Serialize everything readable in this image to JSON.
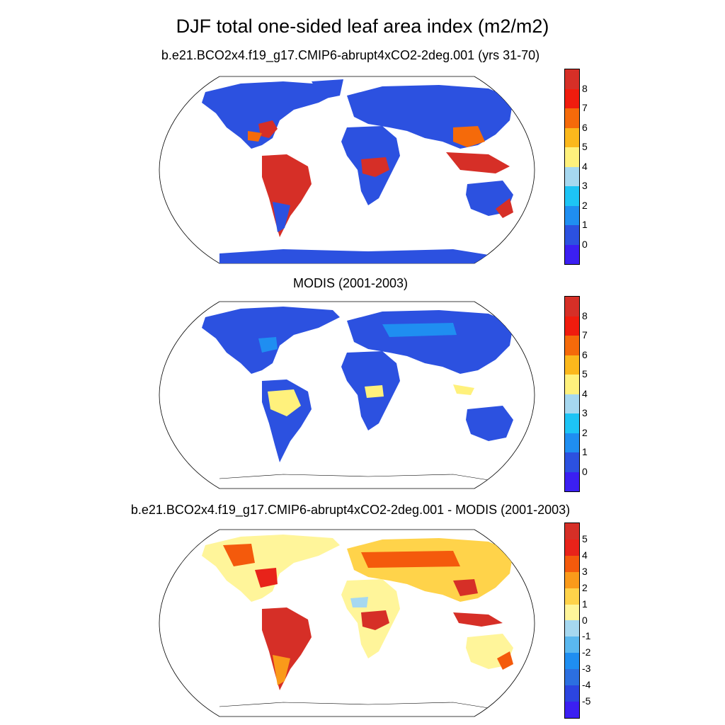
{
  "title": "DJF total one-sided leaf area index (m2/m2)",
  "panels": [
    {
      "id": "model",
      "title": "b.e21.BCO2x4.f19_g17.CMIP6-abrupt4xCO2-2deg.001 (yrs 31-70)",
      "colorbar_labels": [
        "8",
        "7",
        "6",
        "5",
        "4",
        "3",
        "2",
        "1",
        "0"
      ],
      "colors": [
        "#d62f27",
        "#f01c0e",
        "#f56a0a",
        "#fbb81c",
        "#fff17c",
        "#a6d8f0",
        "#1dc4f5",
        "#1f8ef1",
        "#2c51e0",
        "#3b1ff2"
      ]
    },
    {
      "id": "obs",
      "title": "MODIS (2001-2003)",
      "colorbar_labels": [
        "8",
        "7",
        "6",
        "5",
        "4",
        "3",
        "2",
        "1",
        "0"
      ],
      "colors": [
        "#d62f27",
        "#f01c0e",
        "#f56a0a",
        "#fbb81c",
        "#fff17c",
        "#a6d8f0",
        "#1dc4f5",
        "#1f8ef1",
        "#2c51e0",
        "#3b1ff2"
      ]
    },
    {
      "id": "diff",
      "title": "b.e21.BCO2x4.f19_g17.CMIP6-abrupt4xCO2-2deg.001 - MODIS (2001-2003)",
      "colorbar_labels": [
        "5",
        "4",
        "3",
        "2",
        "1",
        "0",
        "-1",
        "-2",
        "-3",
        "-4",
        "-5"
      ],
      "colors": [
        "#d62f27",
        "#e8231a",
        "#f45a0c",
        "#fa9a1a",
        "#ffd34a",
        "#fff59a",
        "#a6d8f0",
        "#5ab8ef",
        "#1f8ef1",
        "#2c6fe0",
        "#2c45e0",
        "#3b1ff2"
      ]
    }
  ]
}
